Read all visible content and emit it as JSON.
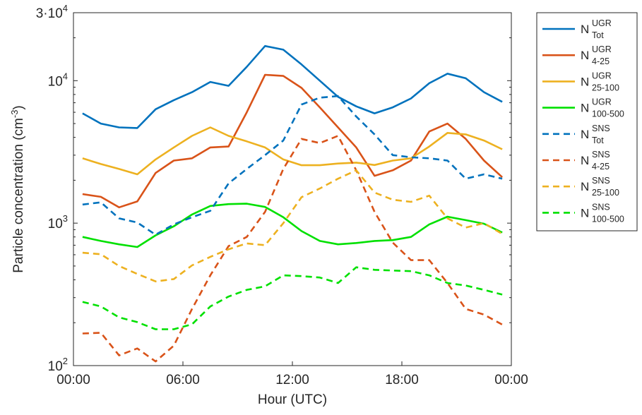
{
  "chart_data": {
    "type": "line",
    "xlabel": "Hour (UTC)",
    "ylabel": "Particle concentration (cm",
    "ylabel_sup": "-3",
    "ylabel_close": ")",
    "yscale": "log",
    "ylim": [
      100,
      30000
    ],
    "xlim": [
      0,
      24
    ],
    "x_ticks": [
      {
        "value": 0,
        "label": "00:00"
      },
      {
        "value": 6,
        "label": "06:00"
      },
      {
        "value": 12,
        "label": "12:00"
      },
      {
        "value": 18,
        "label": "18:00"
      },
      {
        "value": 24,
        "label": "00:00"
      }
    ],
    "y_ticks": [
      {
        "value": 100,
        "base": "10",
        "exp": "2"
      },
      {
        "value": 1000,
        "base": "10",
        "exp": "3"
      },
      {
        "value": 10000,
        "base": "10",
        "exp": "4"
      },
      {
        "value": 30000,
        "base": "3·10",
        "exp": "4"
      }
    ],
    "grid": false,
    "legend_position": "outside-top-right",
    "x": [
      0.5,
      1.5,
      2.5,
      3.5,
      4.5,
      5.5,
      6.5,
      7.5,
      8.5,
      9.5,
      10.5,
      11.5,
      12.5,
      13.5,
      14.5,
      15.5,
      16.5,
      17.5,
      18.5,
      19.5,
      20.5,
      21.5,
      22.5,
      23.5
    ],
    "series": [
      {
        "name": "N",
        "sup": "UGR",
        "sub": "Tot",
        "color": "#0072BD",
        "dash": false,
        "values": [
          5900,
          5000,
          4700,
          4650,
          6300,
          7300,
          8300,
          9800,
          9200,
          12500,
          17500,
          16500,
          13000,
          10000,
          7700,
          6600,
          5900,
          6500,
          7500,
          9600,
          11200,
          10400,
          8300,
          7100
        ]
      },
      {
        "name": "N",
        "sup": "UGR",
        "sub": "4-25",
        "color": "#D95319",
        "dash": false,
        "values": [
          1600,
          1530,
          1290,
          1420,
          2250,
          2750,
          2850,
          3400,
          3450,
          6000,
          11000,
          10800,
          8900,
          6500,
          4700,
          3400,
          2150,
          2350,
          2750,
          4400,
          5000,
          3900,
          2750,
          2100
        ]
      },
      {
        "name": "N",
        "sup": "UGR",
        "sub": "25-100",
        "color": "#EDB120",
        "dash": false,
        "values": [
          2850,
          2600,
          2400,
          2200,
          2800,
          3400,
          4100,
          4700,
          4100,
          3750,
          3400,
          2800,
          2550,
          2550,
          2620,
          2660,
          2560,
          2750,
          2850,
          3450,
          4300,
          4200,
          3800,
          3300
        ]
      },
      {
        "name": "N",
        "sup": "UGR",
        "sub": "100-500",
        "color": "#00E000",
        "dash": false,
        "values": [
          800,
          750,
          710,
          680,
          820,
          950,
          1150,
          1320,
          1360,
          1370,
          1300,
          1100,
          880,
          750,
          710,
          725,
          750,
          760,
          800,
          980,
          1110,
          1050,
          990,
          860
        ]
      },
      {
        "name": "N",
        "sup": "SNS",
        "sub": "Tot",
        "color": "#0072BD",
        "dash": true,
        "values": [
          1350,
          1400,
          1080,
          1010,
          830,
          980,
          1100,
          1220,
          1900,
          2400,
          3000,
          3800,
          6800,
          7600,
          7800,
          5600,
          4200,
          3000,
          2900,
          2850,
          2750,
          2050,
          2200,
          2050
        ]
      },
      {
        "name": "N",
        "sup": "SNS",
        "sub": "4-25",
        "color": "#D95319",
        "dash": true,
        "values": [
          168,
          170,
          118,
          132,
          107,
          138,
          250,
          430,
          690,
          800,
          1200,
          2400,
          3900,
          3650,
          4100,
          2350,
          1200,
          730,
          550,
          550,
          380,
          250,
          228,
          194
        ]
      },
      {
        "name": "N",
        "sup": "SNS",
        "sub": "25-100",
        "color": "#EDB120",
        "dash": true,
        "values": [
          620,
          605,
          500,
          440,
          390,
          405,
          505,
          580,
          655,
          720,
          700,
          1000,
          1520,
          1750,
          2050,
          2350,
          1640,
          1460,
          1410,
          1560,
          1080,
          930,
          1000,
          840
        ]
      },
      {
        "name": "N",
        "sup": "SNS",
        "sub": "100-500",
        "color": "#00E000",
        "dash": true,
        "values": [
          280,
          260,
          218,
          202,
          180,
          180,
          195,
          260,
          305,
          340,
          360,
          430,
          425,
          415,
          380,
          490,
          470,
          465,
          460,
          430,
          380,
          365,
          340,
          315
        ]
      }
    ]
  }
}
